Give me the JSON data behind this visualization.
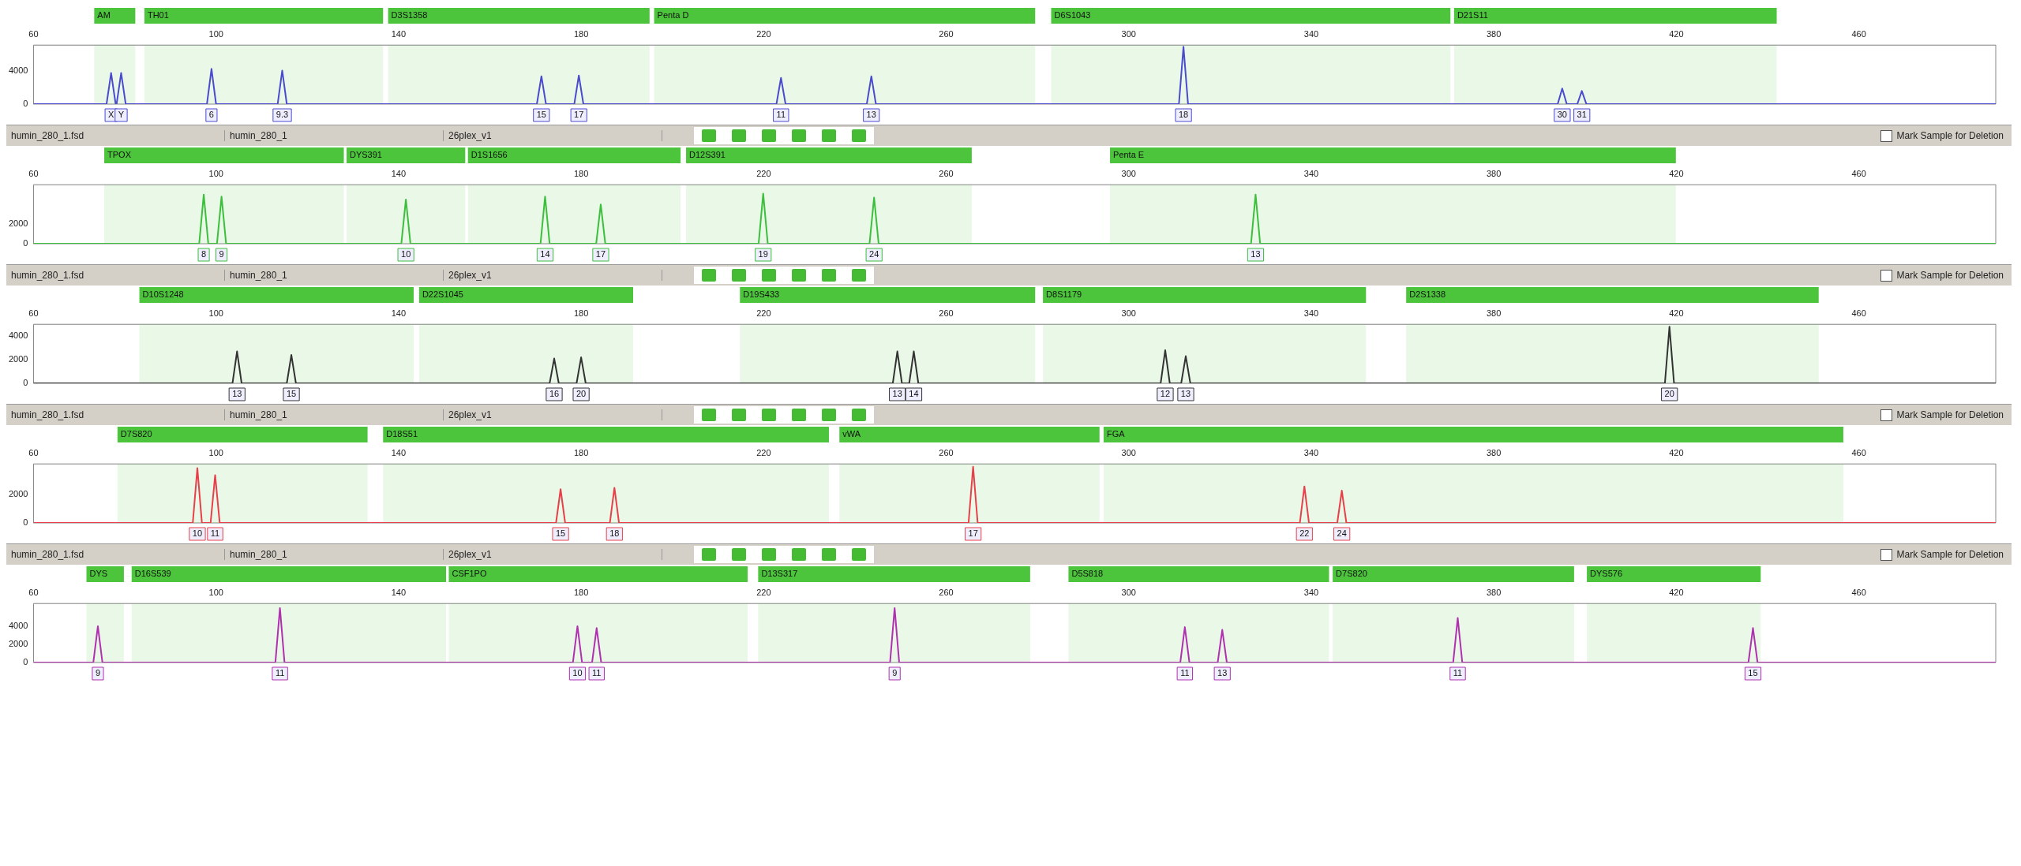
{
  "chart_data": [
    {
      "type": "line",
      "xlim": [
        60,
        490
      ],
      "xticks": [
        60,
        100,
        140,
        180,
        220,
        260,
        300,
        340,
        380,
        420,
        460
      ],
      "ylim": [
        0,
        7200
      ],
      "yticks": [
        0,
        4000
      ],
      "grid": false,
      "marker": "none",
      "annotations": [
        {
          "text": "X",
          "x": 77,
          "y": 0
        },
        {
          "text": "Y",
          "x": 79.2,
          "y": 0
        },
        {
          "text": "6",
          "x": 99,
          "y": 0
        },
        {
          "text": "9.3",
          "x": 114.5,
          "y": 0
        },
        {
          "text": "15",
          "x": 171.3,
          "y": 0
        },
        {
          "text": "17",
          "x": 179.5,
          "y": 0
        },
        {
          "text": "11",
          "x": 223.8,
          "y": 0
        },
        {
          "text": "13",
          "x": 243.6,
          "y": 0
        },
        {
          "text": "18",
          "x": 312,
          "y": 0
        },
        {
          "text": "30",
          "x": 395,
          "y": 0
        },
        {
          "text": "31",
          "x": 399.3,
          "y": 0
        }
      ],
      "bands": [
        {
          "axis": "x",
          "from": 73.3,
          "to": 82.3,
          "label": "AM",
          "color": "#4cc43c"
        },
        {
          "axis": "x",
          "from": 84.3,
          "to": 136.6,
          "label": "TH01",
          "color": "#4cc43c"
        },
        {
          "axis": "x",
          "from": 137.7,
          "to": 195,
          "label": "D3S1358",
          "color": "#4cc43c"
        },
        {
          "axis": "x",
          "from": 196,
          "to": 279.5,
          "label": "Penta D",
          "color": "#4cc43c"
        },
        {
          "axis": "x",
          "from": 283,
          "to": 370.5,
          "label": "D6S1043",
          "color": "#4cc43c"
        },
        {
          "axis": "x",
          "from": 371.3,
          "to": 442,
          "label": "D21S11",
          "color": "#4cc43c"
        }
      ],
      "series": [
        {
          "color": "#4b4bd0",
          "x": [
            60,
            76,
            77,
            78,
            78.2,
            79.2,
            80.2,
            98,
            99,
            100,
            113.5,
            114.5,
            115.5,
            170.3,
            171.3,
            172.3,
            178.5,
            179.5,
            180.5,
            222.8,
            223.8,
            224.8,
            242.6,
            243.6,
            244.6,
            311,
            312,
            313,
            394,
            395,
            396,
            398.3,
            399.3,
            400.3,
            490
          ],
          "values": [
            0,
            0,
            3800,
            0,
            0,
            3800,
            0,
            0,
            4300,
            0,
            0,
            4100,
            0,
            0,
            3400,
            0,
            0,
            3500,
            0,
            0,
            3200,
            0,
            0,
            3400,
            0,
            0,
            7000,
            0,
            0,
            1900,
            0,
            0,
            1600,
            0,
            0
          ]
        }
      ]
    },
    {
      "type": "line",
      "xlim": [
        60,
        490
      ],
      "xticks": [
        60,
        100,
        140,
        180,
        220,
        260,
        300,
        340,
        380,
        420,
        460
      ],
      "ylim": [
        0,
        6000
      ],
      "yticks": [
        0,
        2000
      ],
      "grid": false,
      "marker": "none",
      "annotations": [
        "humin_280_1.fsd",
        "humin_280_1",
        "26plex_v1",
        "Mark Sample for Deletion",
        {
          "text": "8",
          "x": 97.3,
          "y": 0
        },
        {
          "text": "9",
          "x": 101.2,
          "y": 0
        },
        {
          "text": "10",
          "x": 141.6,
          "y": 0
        },
        {
          "text": "14",
          "x": 172.1,
          "y": 0
        },
        {
          "text": "17",
          "x": 184.3,
          "y": 0
        },
        {
          "text": "19",
          "x": 219.9,
          "y": 0
        },
        {
          "text": "24",
          "x": 244.2,
          "y": 0
        },
        {
          "text": "13",
          "x": 327.8,
          "y": 0
        }
      ],
      "bands": [
        {
          "axis": "x",
          "from": 75.5,
          "to": 128,
          "label": "TPOX",
          "color": "#4cc43c"
        },
        {
          "axis": "x",
          "from": 128.6,
          "to": 154.6,
          "label": "DYS391",
          "color": "#4cc43c"
        },
        {
          "axis": "x",
          "from": 155.2,
          "to": 201.8,
          "label": "D1S1656",
          "color": "#4cc43c"
        },
        {
          "axis": "x",
          "from": 203,
          "to": 265.6,
          "label": "D12S391",
          "color": "#4cc43c"
        },
        {
          "axis": "x",
          "from": 295.9,
          "to": 419.9,
          "label": "Penta E",
          "color": "#4cc43c"
        }
      ],
      "series": [
        {
          "color": "#3cbf3c",
          "x": [
            60,
            96.3,
            97.3,
            98.3,
            100.2,
            101.2,
            102.2,
            140.6,
            141.6,
            142.6,
            171.1,
            172.1,
            173.1,
            183.3,
            184.3,
            185.3,
            218.9,
            219.9,
            220.9,
            243.2,
            244.2,
            245.2,
            326.8,
            327.8,
            328.8,
            490
          ],
          "values": [
            0,
            0,
            5000,
            0,
            0,
            4800,
            0,
            0,
            4500,
            0,
            0,
            4800,
            0,
            0,
            4000,
            0,
            0,
            5100,
            0,
            0,
            4700,
            0,
            0,
            5000,
            0,
            0
          ]
        }
      ]
    },
    {
      "type": "line",
      "xlim": [
        60,
        490
      ],
      "xticks": [
        60,
        100,
        140,
        180,
        220,
        260,
        300,
        340,
        380,
        420,
        460
      ],
      "ylim": [
        0,
        5000
      ],
      "yticks": [
        0,
        2000,
        4000
      ],
      "grid": false,
      "marker": "none",
      "annotations": [
        "humin_280_1.fsd",
        "humin_280_1",
        "26plex_v1",
        "Mark Sample for Deletion",
        {
          "text": "13",
          "x": 104.6,
          "y": 0
        },
        {
          "text": "15",
          "x": 116.5,
          "y": 0
        },
        {
          "text": "16",
          "x": 174.1,
          "y": 0
        },
        {
          "text": "20",
          "x": 180,
          "y": 0
        },
        {
          "text": "13",
          "x": 249.3,
          "y": 0
        },
        {
          "text": "14",
          "x": 252.9,
          "y": 0
        },
        {
          "text": "12",
          "x": 308,
          "y": 0
        },
        {
          "text": "13",
          "x": 312.5,
          "y": 0
        },
        {
          "text": "20",
          "x": 418.5,
          "y": 0
        }
      ],
      "bands": [
        {
          "axis": "x",
          "from": 83.2,
          "to": 143.3,
          "label": "D10S1248",
          "color": "#4cc43c"
        },
        {
          "axis": "x",
          "from": 144.5,
          "to": 191.4,
          "label": "D22S1045",
          "color": "#4cc43c"
        },
        {
          "axis": "x",
          "from": 214.8,
          "to": 279.5,
          "label": "D19S433",
          "color": "#4cc43c"
        },
        {
          "axis": "x",
          "from": 281.2,
          "to": 352,
          "label": "D8S1179",
          "color": "#4cc43c"
        },
        {
          "axis": "x",
          "from": 360.8,
          "to": 451.2,
          "label": "D2S1338",
          "color": "#4cc43c"
        }
      ],
      "series": [
        {
          "color": "#333333",
          "x": [
            60,
            103.6,
            104.6,
            105.6,
            115.5,
            116.5,
            117.5,
            173.1,
            174.1,
            175.1,
            179,
            180,
            181,
            248.3,
            249.3,
            250.3,
            251.9,
            252.9,
            253.9,
            307,
            308,
            309,
            311.5,
            312.5,
            313.5,
            417.5,
            418.5,
            419.5,
            490
          ],
          "values": [
            0,
            0,
            2700,
            0,
            0,
            2400,
            0,
            0,
            2100,
            0,
            0,
            2200,
            0,
            0,
            2700,
            0,
            0,
            2700,
            0,
            0,
            2800,
            0,
            0,
            2300,
            0,
            0,
            4800,
            0,
            0
          ]
        }
      ]
    },
    {
      "type": "line",
      "xlim": [
        60,
        490
      ],
      "xticks": [
        60,
        100,
        140,
        180,
        220,
        260,
        300,
        340,
        380,
        420,
        460
      ],
      "ylim": [
        0,
        4200
      ],
      "yticks": [
        0,
        2000
      ],
      "grid": false,
      "marker": "none",
      "annotations": [
        "humin_280_1.fsd",
        "humin_280_1",
        "26plex_v1",
        "Mark Sample for Deletion",
        {
          "text": "10",
          "x": 95.9,
          "y": 0
        },
        {
          "text": "11",
          "x": 99.8,
          "y": 0
        },
        {
          "text": "15",
          "x": 175.5,
          "y": 0
        },
        {
          "text": "18",
          "x": 187.3,
          "y": 0
        },
        {
          "text": "17",
          "x": 265.9,
          "y": 0
        },
        {
          "text": "22",
          "x": 338.5,
          "y": 0
        },
        {
          "text": "24",
          "x": 346.7,
          "y": 0
        }
      ],
      "bands": [
        {
          "axis": "x",
          "from": 78.4,
          "to": 133.2,
          "label": "D7S820",
          "color": "#4cc43c"
        },
        {
          "axis": "x",
          "from": 136.6,
          "to": 234.3,
          "label": "D18S51",
          "color": "#4cc43c"
        },
        {
          "axis": "x",
          "from": 236.6,
          "to": 293.6,
          "label": "vWA",
          "color": "#4cc43c"
        },
        {
          "axis": "x",
          "from": 294.5,
          "to": 456.6,
          "label": "FGA",
          "color": "#4cc43c"
        }
      ],
      "series": [
        {
          "color": "#e8404a",
          "x": [
            60,
            94.9,
            95.9,
            96.9,
            98.8,
            99.8,
            100.8,
            174.5,
            175.5,
            176.5,
            186.3,
            187.3,
            188.3,
            264.9,
            265.9,
            266.9,
            337.5,
            338.5,
            339.5,
            345.7,
            346.7,
            347.7,
            490
          ],
          "values": [
            0,
            0,
            3900,
            0,
            0,
            3400,
            0,
            0,
            2400,
            0,
            0,
            2500,
            0,
            0,
            4000,
            0,
            0,
            2600,
            0,
            0,
            2300,
            0,
            0
          ]
        }
      ]
    },
    {
      "type": "line",
      "xlim": [
        60,
        490
      ],
      "xticks": [
        60,
        100,
        140,
        180,
        220,
        260,
        300,
        340,
        380,
        420,
        460
      ],
      "ylim": [
        0,
        6500
      ],
      "yticks": [
        0,
        2000,
        4000
      ],
      "grid": false,
      "marker": "none",
      "annotations": [
        "humin_280_1.fsd",
        "humin_280_1",
        "26plex_v1",
        "Mark Sample for Deletion",
        {
          "text": "9",
          "x": 74.1,
          "y": 0
        },
        {
          "text": "11",
          "x": 114,
          "y": 0
        },
        {
          "text": "10",
          "x": 179.2,
          "y": 0
        },
        {
          "text": "11",
          "x": 183.4,
          "y": 0
        },
        {
          "text": "9",
          "x": 248.7,
          "y": 0
        },
        {
          "text": "11",
          "x": 312.3,
          "y": 0
        },
        {
          "text": "13",
          "x": 320.5,
          "y": 0
        },
        {
          "text": "11",
          "x": 372.1,
          "y": 0
        },
        {
          "text": "15",
          "x": 436.8,
          "y": 0
        }
      ],
      "bands": [
        {
          "axis": "x",
          "from": 71.6,
          "to": 79.8,
          "label": "DYS",
          "color": "#4cc43c"
        },
        {
          "axis": "x",
          "from": 81.5,
          "to": 150.4,
          "label": "D16S539",
          "color": "#4cc43c"
        },
        {
          "axis": "x",
          "from": 151,
          "to": 216.5,
          "label": "CSF1PO",
          "color": "#4cc43c"
        },
        {
          "axis": "x",
          "from": 218.8,
          "to": 278.4,
          "label": "D13S317",
          "color": "#4cc43c"
        },
        {
          "axis": "x",
          "from": 286.8,
          "to": 343.9,
          "label": "D5S818",
          "color": "#4cc43c"
        },
        {
          "axis": "x",
          "from": 344.7,
          "to": 397.6,
          "label": "D7S820",
          "color": "#4cc43c"
        },
        {
          "axis": "x",
          "from": 400.4,
          "to": 438.5,
          "label": "DYS576",
          "color": "#4cc43c"
        }
      ],
      "series": [
        {
          "color": "#b030b0",
          "x": [
            60,
            73.1,
            74.1,
            75.1,
            113,
            114,
            115,
            178.2,
            179.2,
            180.2,
            182.4,
            183.4,
            184.4,
            247.7,
            248.7,
            249.7,
            311.3,
            312.3,
            313.3,
            319.5,
            320.5,
            321.5,
            371.1,
            372.1,
            373.1,
            435.8,
            436.8,
            437.8,
            490
          ],
          "values": [
            0,
            0,
            4000,
            0,
            0,
            6000,
            0,
            0,
            4000,
            0,
            0,
            3800,
            0,
            0,
            6000,
            0,
            0,
            3900,
            0,
            0,
            3600,
            0,
            0,
            4900,
            0,
            0,
            3800,
            0,
            0
          ]
        }
      ]
    }
  ]
}
